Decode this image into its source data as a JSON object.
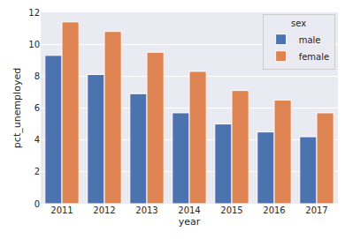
{
  "chart_data": {
    "type": "bar",
    "x_label": "year",
    "y_label": "pct_unemployed",
    "legend_title": "sex",
    "categories": [
      "2011",
      "2012",
      "2013",
      "2014",
      "2015",
      "2016",
      "2017"
    ],
    "series": [
      {
        "name": "male",
        "color": "#4c72b0",
        "values": [
          9.3,
          8.1,
          6.9,
          5.7,
          5.0,
          4.5,
          4.2
        ]
      },
      {
        "name": "female",
        "color": "#dd8452",
        "values": [
          11.4,
          10.8,
          9.5,
          8.3,
          7.1,
          6.5,
          5.7
        ]
      }
    ],
    "ylim": [
      0,
      12
    ],
    "yticks": [
      0,
      2,
      4,
      6,
      8,
      10,
      12
    ],
    "grid": true,
    "legend": "upper right"
  }
}
